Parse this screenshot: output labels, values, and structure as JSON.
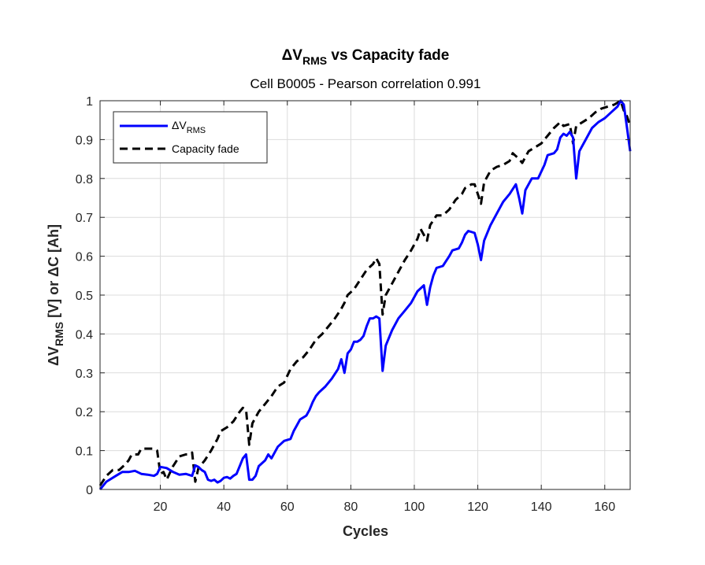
{
  "chart_data": {
    "type": "line",
    "title": "ΔV",
    "title_sub": "RMS",
    "title_rest": " vs Capacity fade",
    "subtitle": "Cell B0005 - Pearson correlation 0.991",
    "xlabel": "Cycles",
    "ylabel": {
      "part1": "ΔV",
      "part1_sub": "RMS",
      "part2": " [V]  or  ΔC [Ah]"
    },
    "xlim": [
      1,
      168
    ],
    "ylim": [
      0,
      1
    ],
    "x_ticks": [
      20,
      40,
      60,
      80,
      100,
      120,
      140,
      160
    ],
    "y_ticks": [
      0,
      0.1,
      0.2,
      0.3,
      0.4,
      0.5,
      0.6,
      0.7,
      0.8,
      0.9,
      1
    ],
    "grid": true,
    "legend_position": "top-left",
    "series": [
      {
        "name": "ΔV",
        "name_sub": "RMS",
        "color": "#0000ff",
        "style": "solid",
        "points": [
          [
            1,
            0.0
          ],
          [
            3,
            0.02
          ],
          [
            6,
            0.035
          ],
          [
            8,
            0.045
          ],
          [
            10,
            0.045
          ],
          [
            12,
            0.048
          ],
          [
            14,
            0.04
          ],
          [
            16,
            0.038
          ],
          [
            18,
            0.035
          ],
          [
            19,
            0.04
          ],
          [
            20,
            0.058
          ],
          [
            22,
            0.055
          ],
          [
            24,
            0.045
          ],
          [
            26,
            0.038
          ],
          [
            28,
            0.04
          ],
          [
            30,
            0.035
          ],
          [
            31,
            0.062
          ],
          [
            32,
            0.058
          ],
          [
            33,
            0.05
          ],
          [
            34,
            0.045
          ],
          [
            35,
            0.025
          ],
          [
            36,
            0.022
          ],
          [
            37,
            0.025
          ],
          [
            38,
            0.018
          ],
          [
            39,
            0.022
          ],
          [
            40,
            0.03
          ],
          [
            41,
            0.032
          ],
          [
            42,
            0.028
          ],
          [
            43,
            0.035
          ],
          [
            44,
            0.04
          ],
          [
            45,
            0.06
          ],
          [
            46,
            0.08
          ],
          [
            47,
            0.09
          ],
          [
            48,
            0.025
          ],
          [
            49,
            0.025
          ],
          [
            50,
            0.035
          ],
          [
            51,
            0.06
          ],
          [
            53,
            0.075
          ],
          [
            54,
            0.09
          ],
          [
            55,
            0.08
          ],
          [
            57,
            0.11
          ],
          [
            59,
            0.125
          ],
          [
            61,
            0.13
          ],
          [
            62,
            0.15
          ],
          [
            63,
            0.165
          ],
          [
            64,
            0.18
          ],
          [
            65,
            0.185
          ],
          [
            66,
            0.19
          ],
          [
            67,
            0.205
          ],
          [
            68,
            0.225
          ],
          [
            69,
            0.24
          ],
          [
            70,
            0.25
          ],
          [
            72,
            0.265
          ],
          [
            74,
            0.285
          ],
          [
            76,
            0.31
          ],
          [
            77,
            0.335
          ],
          [
            78,
            0.3
          ],
          [
            79,
            0.35
          ],
          [
            80,
            0.36
          ],
          [
            81,
            0.38
          ],
          [
            82,
            0.38
          ],
          [
            83,
            0.385
          ],
          [
            84,
            0.395
          ],
          [
            85,
            0.42
          ],
          [
            86,
            0.44
          ],
          [
            87,
            0.44
          ],
          [
            88,
            0.445
          ],
          [
            89,
            0.44
          ],
          [
            90,
            0.305
          ],
          [
            91,
            0.37
          ],
          [
            93,
            0.41
          ],
          [
            95,
            0.44
          ],
          [
            97,
            0.46
          ],
          [
            99,
            0.48
          ],
          [
            101,
            0.51
          ],
          [
            103,
            0.525
          ],
          [
            104,
            0.475
          ],
          [
            105,
            0.52
          ],
          [
            106,
            0.55
          ],
          [
            107,
            0.57
          ],
          [
            109,
            0.575
          ],
          [
            111,
            0.6
          ],
          [
            112,
            0.615
          ],
          [
            114,
            0.62
          ],
          [
            115,
            0.635
          ],
          [
            116,
            0.655
          ],
          [
            117,
            0.665
          ],
          [
            119,
            0.66
          ],
          [
            120,
            0.63
          ],
          [
            121,
            0.59
          ],
          [
            122,
            0.64
          ],
          [
            124,
            0.68
          ],
          [
            126,
            0.71
          ],
          [
            128,
            0.74
          ],
          [
            130,
            0.76
          ],
          [
            132,
            0.785
          ],
          [
            133,
            0.75
          ],
          [
            134,
            0.71
          ],
          [
            135,
            0.77
          ],
          [
            137,
            0.8
          ],
          [
            139,
            0.8
          ],
          [
            141,
            0.835
          ],
          [
            142,
            0.86
          ],
          [
            144,
            0.865
          ],
          [
            145,
            0.875
          ],
          [
            146,
            0.905
          ],
          [
            147,
            0.915
          ],
          [
            148,
            0.91
          ],
          [
            149,
            0.92
          ],
          [
            150,
            0.905
          ],
          [
            151,
            0.8
          ],
          [
            152,
            0.87
          ],
          [
            154,
            0.9
          ],
          [
            156,
            0.93
          ],
          [
            158,
            0.945
          ],
          [
            160,
            0.955
          ],
          [
            162,
            0.97
          ],
          [
            164,
            0.985
          ],
          [
            165,
            1.0
          ],
          [
            166,
            0.99
          ],
          [
            167,
            0.93
          ],
          [
            168,
            0.87
          ]
        ]
      },
      {
        "name": "Capacity fade",
        "color": "#000000",
        "style": "dashed",
        "points": [
          [
            1,
            0.01
          ],
          [
            3,
            0.035
          ],
          [
            5,
            0.05
          ],
          [
            7,
            0.05
          ],
          [
            9,
            0.065
          ],
          [
            10,
            0.075
          ],
          [
            11,
            0.09
          ],
          [
            13,
            0.09
          ],
          [
            14,
            0.105
          ],
          [
            16,
            0.105
          ],
          [
            18,
            0.105
          ],
          [
            19,
            0.1
          ],
          [
            20,
            0.04
          ],
          [
            21,
            0.045
          ],
          [
            22,
            0.025
          ],
          [
            24,
            0.06
          ],
          [
            26,
            0.085
          ],
          [
            28,
            0.09
          ],
          [
            29,
            0.09
          ],
          [
            30,
            0.095
          ],
          [
            31,
            0.02
          ],
          [
            32,
            0.055
          ],
          [
            34,
            0.075
          ],
          [
            36,
            0.1
          ],
          [
            38,
            0.13
          ],
          [
            39,
            0.15
          ],
          [
            41,
            0.16
          ],
          [
            43,
            0.175
          ],
          [
            45,
            0.2
          ],
          [
            46,
            0.21
          ],
          [
            47,
            0.205
          ],
          [
            48,
            0.115
          ],
          [
            49,
            0.17
          ],
          [
            51,
            0.2
          ],
          [
            53,
            0.22
          ],
          [
            55,
            0.24
          ],
          [
            57,
            0.265
          ],
          [
            59,
            0.275
          ],
          [
            61,
            0.31
          ],
          [
            63,
            0.33
          ],
          [
            65,
            0.34
          ],
          [
            67,
            0.36
          ],
          [
            69,
            0.385
          ],
          [
            71,
            0.4
          ],
          [
            73,
            0.42
          ],
          [
            75,
            0.44
          ],
          [
            77,
            0.465
          ],
          [
            78,
            0.48
          ],
          [
            79,
            0.5
          ],
          [
            81,
            0.515
          ],
          [
            83,
            0.54
          ],
          [
            85,
            0.565
          ],
          [
            87,
            0.58
          ],
          [
            88,
            0.595
          ],
          [
            89,
            0.58
          ],
          [
            90,
            0.45
          ],
          [
            91,
            0.5
          ],
          [
            93,
            0.53
          ],
          [
            95,
            0.56
          ],
          [
            97,
            0.59
          ],
          [
            99,
            0.615
          ],
          [
            101,
            0.645
          ],
          [
            102,
            0.67
          ],
          [
            104,
            0.64
          ],
          [
            105,
            0.68
          ],
          [
            107,
            0.705
          ],
          [
            109,
            0.705
          ],
          [
            111,
            0.72
          ],
          [
            113,
            0.745
          ],
          [
            115,
            0.76
          ],
          [
            116,
            0.775
          ],
          [
            118,
            0.785
          ],
          [
            119,
            0.785
          ],
          [
            121,
            0.735
          ],
          [
            122,
            0.79
          ],
          [
            124,
            0.82
          ],
          [
            126,
            0.83
          ],
          [
            128,
            0.835
          ],
          [
            130,
            0.845
          ],
          [
            131,
            0.865
          ],
          [
            133,
            0.85
          ],
          [
            134,
            0.84
          ],
          [
            136,
            0.87
          ],
          [
            138,
            0.88
          ],
          [
            140,
            0.89
          ],
          [
            142,
            0.91
          ],
          [
            144,
            0.93
          ],
          [
            146,
            0.945
          ],
          [
            147,
            0.935
          ],
          [
            149,
            0.94
          ],
          [
            150,
            0.89
          ],
          [
            151,
            0.935
          ],
          [
            153,
            0.945
          ],
          [
            155,
            0.955
          ],
          [
            157,
            0.97
          ],
          [
            159,
            0.98
          ],
          [
            161,
            0.985
          ],
          [
            163,
            0.99
          ],
          [
            164,
            0.995
          ],
          [
            165,
            1.0
          ],
          [
            166,
            0.975
          ],
          [
            167,
            0.96
          ],
          [
            168,
            0.935
          ]
        ]
      }
    ]
  }
}
